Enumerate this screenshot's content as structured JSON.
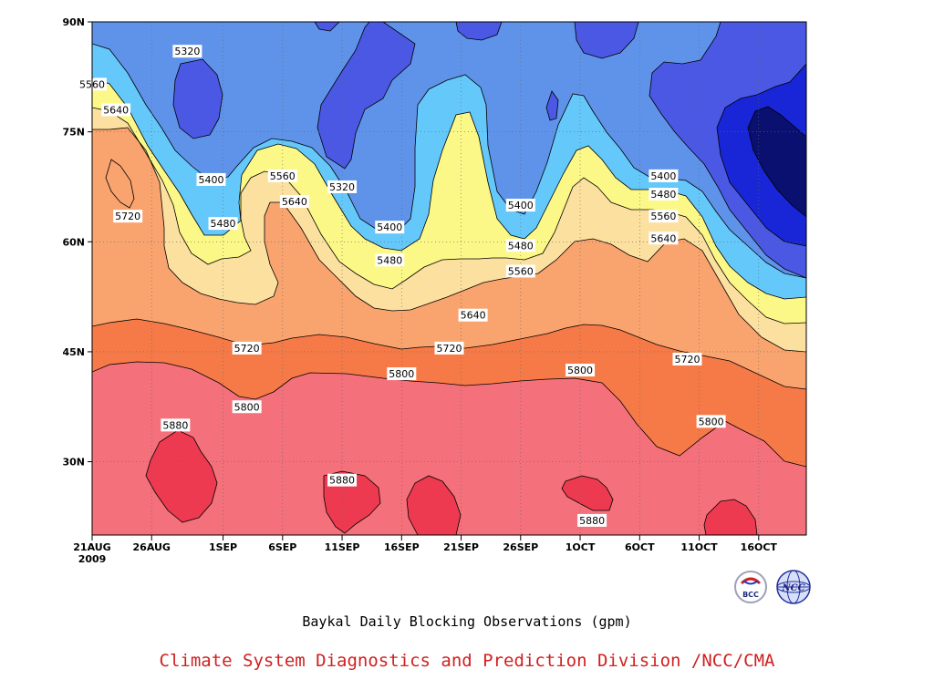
{
  "chart_data": {
    "type": "heatmap",
    "title": "Baykal Daily Blocking Observations (gpm)",
    "y_ticks": [
      "90N",
      "75N",
      "60N",
      "45N",
      "30N"
    ],
    "x_ticks": [
      "21AUG",
      "26AUG",
      "1SEP",
      "6SEP",
      "11SEP",
      "16SEP",
      "21SEP",
      "26SEP",
      "1OCT",
      "6OCT",
      "11OCT",
      "16OCT"
    ],
    "x_year_label": "2009",
    "grid": true,
    "contour_levels": [
      5320,
      5400,
      5480,
      5560,
      5640,
      5720,
      5800,
      5880
    ],
    "ylim": [
      20,
      90
    ],
    "xlim": [
      "21AUG2009",
      "20OCT2009"
    ],
    "contour_labels": [
      {
        "text": "5320",
        "date": "29AUG",
        "lat": 86
      },
      {
        "text": "5560",
        "date": "21AUG",
        "lat": 81.5
      },
      {
        "text": "5640",
        "date": "23AUG",
        "lat": 78
      },
      {
        "text": "5720",
        "date": "24AUG",
        "lat": 63.5
      },
      {
        "text": "5400",
        "date": "31AUG",
        "lat": 68.5
      },
      {
        "text": "5480",
        "date": "1SEP",
        "lat": 62.5
      },
      {
        "text": "5560",
        "date": "6SEP",
        "lat": 69
      },
      {
        "text": "5640",
        "date": "7SEP",
        "lat": 65.5
      },
      {
        "text": "5320",
        "date": "11SEP",
        "lat": 67.5
      },
      {
        "text": "5400",
        "date": "15SEP",
        "lat": 62
      },
      {
        "text": "5480",
        "date": "15SEP",
        "lat": 57.5
      },
      {
        "text": "5400",
        "date": "26SEP",
        "lat": 65
      },
      {
        "text": "5480",
        "date": "26SEP",
        "lat": 59.5
      },
      {
        "text": "5560",
        "date": "26SEP",
        "lat": 56
      },
      {
        "text": "5640",
        "date": "22SEP",
        "lat": 50
      },
      {
        "text": "5720",
        "date": "3SEP",
        "lat": 45.5
      },
      {
        "text": "5720",
        "date": "20SEP",
        "lat": 45.5
      },
      {
        "text": "5800",
        "date": "16SEP",
        "lat": 42
      },
      {
        "text": "5800",
        "date": "1OCT",
        "lat": 42.5
      },
      {
        "text": "5800",
        "date": "3SEP",
        "lat": 37.5
      },
      {
        "text": "5880",
        "date": "28AUG",
        "lat": 35
      },
      {
        "text": "5880",
        "date": "11SEP",
        "lat": 27.5
      },
      {
        "text": "5880",
        "date": "2OCT",
        "lat": 22
      },
      {
        "text": "5400",
        "date": "8OCT",
        "lat": 69
      },
      {
        "text": "5480",
        "date": "8OCT",
        "lat": 66.5
      },
      {
        "text": "5560",
        "date": "8OCT",
        "lat": 63.5
      },
      {
        "text": "5640",
        "date": "8OCT",
        "lat": 60.5
      },
      {
        "text": "5720",
        "date": "10OCT",
        "lat": 44
      },
      {
        "text": "5800",
        "date": "12OCT",
        "lat": 35.5
      }
    ]
  },
  "footer": {
    "credit": "Climate System Diagnostics and Prediction Division /NCC/CMA",
    "credit_color": "#d02020"
  },
  "logos": {
    "bcc_text": "BCC",
    "ncc_text": "NCC",
    "bcc_icon": "bcc-logo-icon",
    "ncc_icon": "ncc-globe-icon"
  },
  "colors": {
    "band_le_5320": "#3a44e0",
    "band_5320_5400": "#4a58e4",
    "band_5400_5480": "#5f93ea",
    "band_5480_5560": "#65c8fa",
    "band_5560_5640": "#fbf887",
    "band_5640_5720": "#fce0a0",
    "band_5720_5800": "#f9a46e",
    "band_5800_5880": "#f67a48",
    "band_ge_5880": "#f4707a",
    "band_max": "#ed3a50",
    "lowest_core": "#1826d8",
    "deepest_core": "#0a1070"
  }
}
